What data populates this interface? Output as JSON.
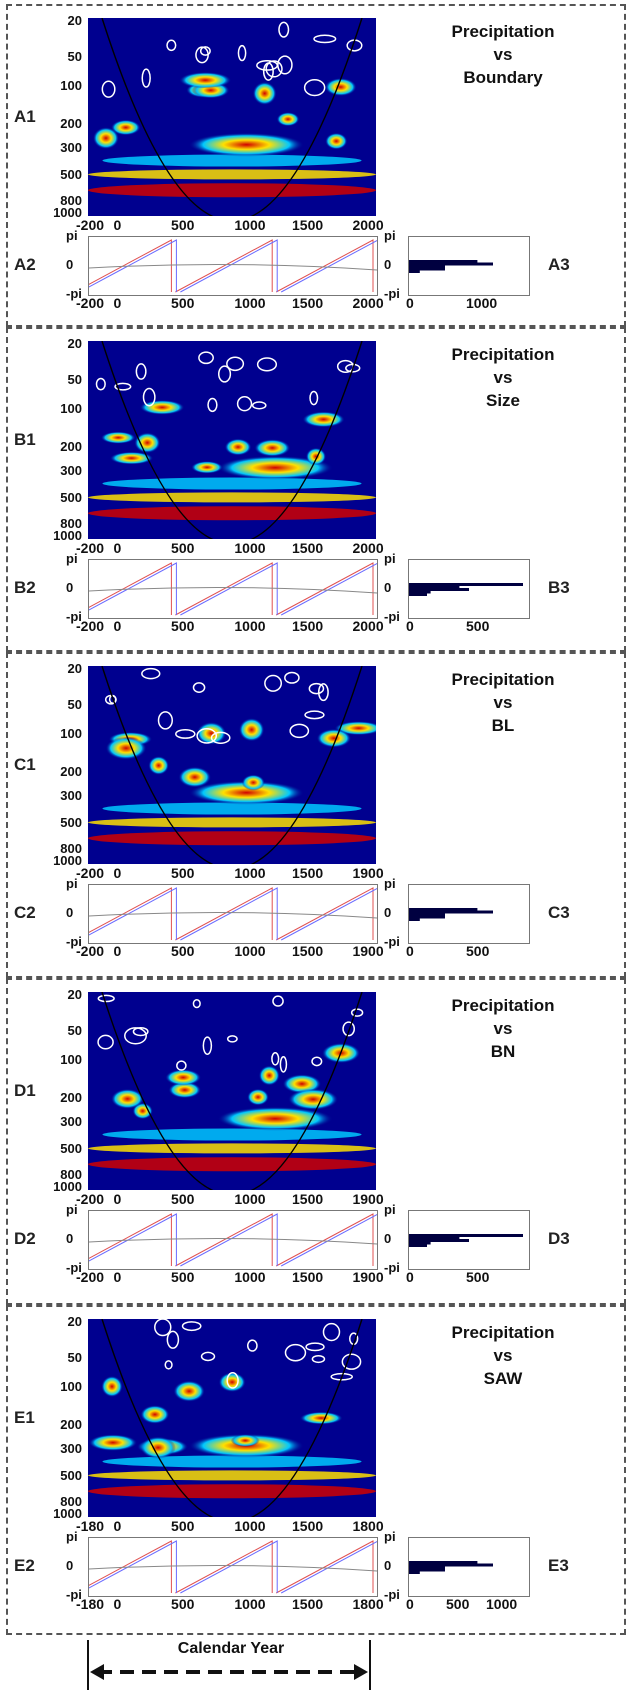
{
  "panels": [
    {
      "id": "A",
      "title": [
        "Precipitation",
        "vs",
        "Boundary"
      ],
      "labels": {
        "wt": "A1",
        "phase": "A2",
        "hist": "A3"
      },
      "wt_ticks": [
        "20",
        "50",
        "100",
        "200",
        "300",
        "500",
        "800",
        "1000"
      ],
      "phase_x": [
        "-200",
        "0",
        "500",
        "1000",
        "1500",
        "2000"
      ],
      "hist_x": [
        "0",
        "1000"
      ],
      "phase_y": [
        "pi",
        "0",
        "-pi"
      ],
      "hist_y": [
        "pi",
        "0",
        "-pi"
      ]
    },
    {
      "id": "B",
      "title": [
        "Precipitation",
        "vs",
        "Size"
      ],
      "labels": {
        "wt": "B1",
        "phase": "B2",
        "hist": "B3"
      },
      "wt_ticks": [
        "20",
        "50",
        "100",
        "200",
        "300",
        "500",
        "800",
        "1000"
      ],
      "phase_x": [
        "-200",
        "0",
        "500",
        "1000",
        "1500",
        "2000"
      ],
      "hist_x": [
        "0",
        "500"
      ],
      "phase_y": [
        "pi",
        "0",
        "-pi"
      ],
      "hist_y": [
        "pi",
        "0",
        "-pi"
      ]
    },
    {
      "id": "C",
      "title": [
        "Precipitation",
        "vs",
        "BL"
      ],
      "labels": {
        "wt": "C1",
        "phase": "C2",
        "hist": "C3"
      },
      "wt_ticks": [
        "20",
        "50",
        "100",
        "200",
        "300",
        "500",
        "800",
        "1000"
      ],
      "phase_x": [
        "-200",
        "0",
        "500",
        "1000",
        "1500",
        "1900"
      ],
      "hist_x": [
        "0",
        "500"
      ],
      "phase_y": [
        "pi",
        "0",
        "-pi"
      ],
      "hist_y": [
        "pi",
        "0",
        "-pi"
      ]
    },
    {
      "id": "D",
      "title": [
        "Precipitation",
        "vs",
        "BN"
      ],
      "labels": {
        "wt": "D1",
        "phase": "D2",
        "hist": "D3"
      },
      "wt_ticks": [
        "20",
        "50",
        "100",
        "200",
        "300",
        "500",
        "800",
        "1000"
      ],
      "phase_x": [
        "-200",
        "0",
        "500",
        "1000",
        "1500",
        "1900"
      ],
      "hist_x": [
        "0",
        "500"
      ],
      "phase_y": [
        "pi",
        "0",
        "-pi"
      ],
      "hist_y": [
        "pi",
        "0",
        "-pi"
      ]
    },
    {
      "id": "E",
      "title": [
        "Precipitation",
        "vs",
        "SAW"
      ],
      "labels": {
        "wt": "E1",
        "phase": "E2",
        "hist": "E3"
      },
      "wt_ticks": [
        "20",
        "50",
        "100",
        "200",
        "300",
        "500",
        "800",
        "1000"
      ],
      "phase_x": [
        "-180",
        "0",
        "500",
        "1000",
        "1500",
        "1800"
      ],
      "hist_x": [
        "0",
        "500",
        "1000"
      ],
      "phase_y": [
        "pi",
        "0",
        "-pi"
      ],
      "hist_y": [
        "pi",
        "0",
        "-pi"
      ]
    }
  ],
  "footer": {
    "label": "Calendar Year"
  },
  "colors": {
    "bg": "#00008f",
    "red": "#d00000",
    "yellow": "#ffe000",
    "cyan": "#00c8ff",
    "white": "#ffffff",
    "phase_red": "#e05050",
    "phase_blue": "#6a6aff",
    "phase_gray": "#888888",
    "hist": "#000040"
  },
  "chart_data": [
    {
      "type": "heatmap",
      "title": "Precipitation vs Boundary",
      "x_range": [
        -200,
        2000
      ],
      "y_ticks": [
        20,
        50,
        100,
        200,
        300,
        500,
        800,
        1000
      ],
      "y_scale": "log"
    },
    {
      "type": "heatmap",
      "title": "Precipitation vs Size",
      "x_range": [
        -200,
        2000
      ],
      "y_ticks": [
        20,
        50,
        100,
        200,
        300,
        500,
        800,
        1000
      ],
      "y_scale": "log"
    },
    {
      "type": "heatmap",
      "title": "Precipitation vs BL",
      "x_range": [
        -200,
        1900
      ],
      "y_ticks": [
        20,
        50,
        100,
        200,
        300,
        500,
        800,
        1000
      ],
      "y_scale": "log"
    },
    {
      "type": "heatmap",
      "title": "Precipitation vs BN",
      "x_range": [
        -200,
        1900
      ],
      "y_ticks": [
        20,
        50,
        100,
        200,
        300,
        500,
        800,
        1000
      ],
      "y_scale": "log"
    },
    {
      "type": "heatmap",
      "title": "Precipitation vs SAW",
      "x_range": [
        -180,
        1800
      ],
      "y_ticks": [
        20,
        50,
        100,
        200,
        300,
        500,
        800,
        1000
      ],
      "y_scale": "log"
    }
  ]
}
